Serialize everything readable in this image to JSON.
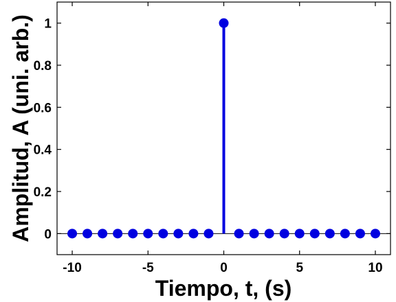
{
  "colors": {
    "series": "#0000e0",
    "axis": "#000000",
    "background": "#ffffff"
  },
  "chart_data": {
    "type": "scatter",
    "title": "",
    "xlabel": "Tiempo, t, (s)",
    "ylabel": "Amplitud, A (uni. arb.)",
    "xlim": [
      -11,
      11
    ],
    "ylim": [
      -0.1,
      1.1
    ],
    "xticks": [
      -10,
      -5,
      0,
      5,
      10
    ],
    "yticks": [
      0,
      0.2,
      0.4,
      0.6,
      0.8,
      1
    ],
    "xtick_labels": [
      "-10",
      "-5",
      "0",
      "5",
      "10"
    ],
    "ytick_labels": [
      "0",
      "0.2",
      "0.4",
      "0.6",
      "0.8",
      "1"
    ],
    "grid": false,
    "baseline": 0,
    "series": [
      {
        "style": "stem",
        "x": [
          -10,
          -9,
          -8,
          -7,
          -6,
          -5,
          -4,
          -3,
          -2,
          -1,
          0,
          1,
          2,
          3,
          4,
          5,
          6,
          7,
          8,
          9,
          10
        ],
        "y": [
          0,
          0,
          0,
          0,
          0,
          0,
          0,
          0,
          0,
          0,
          1,
          0,
          0,
          0,
          0,
          0,
          0,
          0,
          0,
          0,
          0
        ]
      }
    ]
  }
}
